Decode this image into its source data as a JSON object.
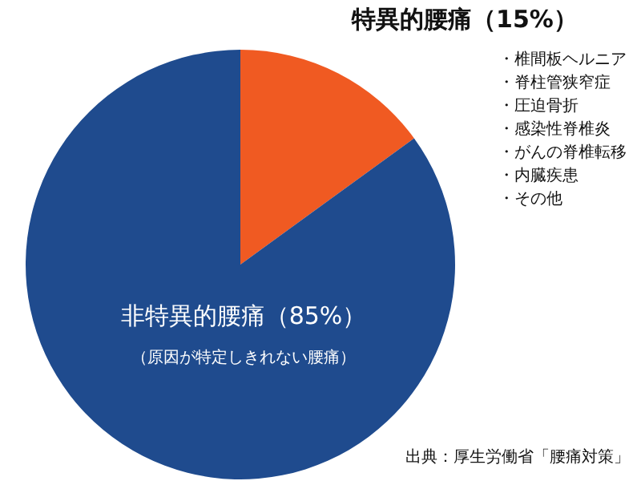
{
  "chart_data": {
    "type": "pie",
    "categories": [
      "特異的腰痛（15%）",
      "非特異的腰痛（85%）"
    ],
    "values": [
      15,
      85
    ],
    "colors": [
      "#f05a22",
      "#1f4b8e"
    ],
    "annotations": [
      "（原因が特定しきれない腰痛）",
      "・椎間板ヘルニア",
      "・脊柱管狭窄症",
      "・圧迫骨折",
      "・感染性脊椎炎",
      "・がんの脊椎転移",
      "・内臓疾患",
      "・その他",
      "出典：厚生労働省「腰痛対策」"
    ]
  }
}
